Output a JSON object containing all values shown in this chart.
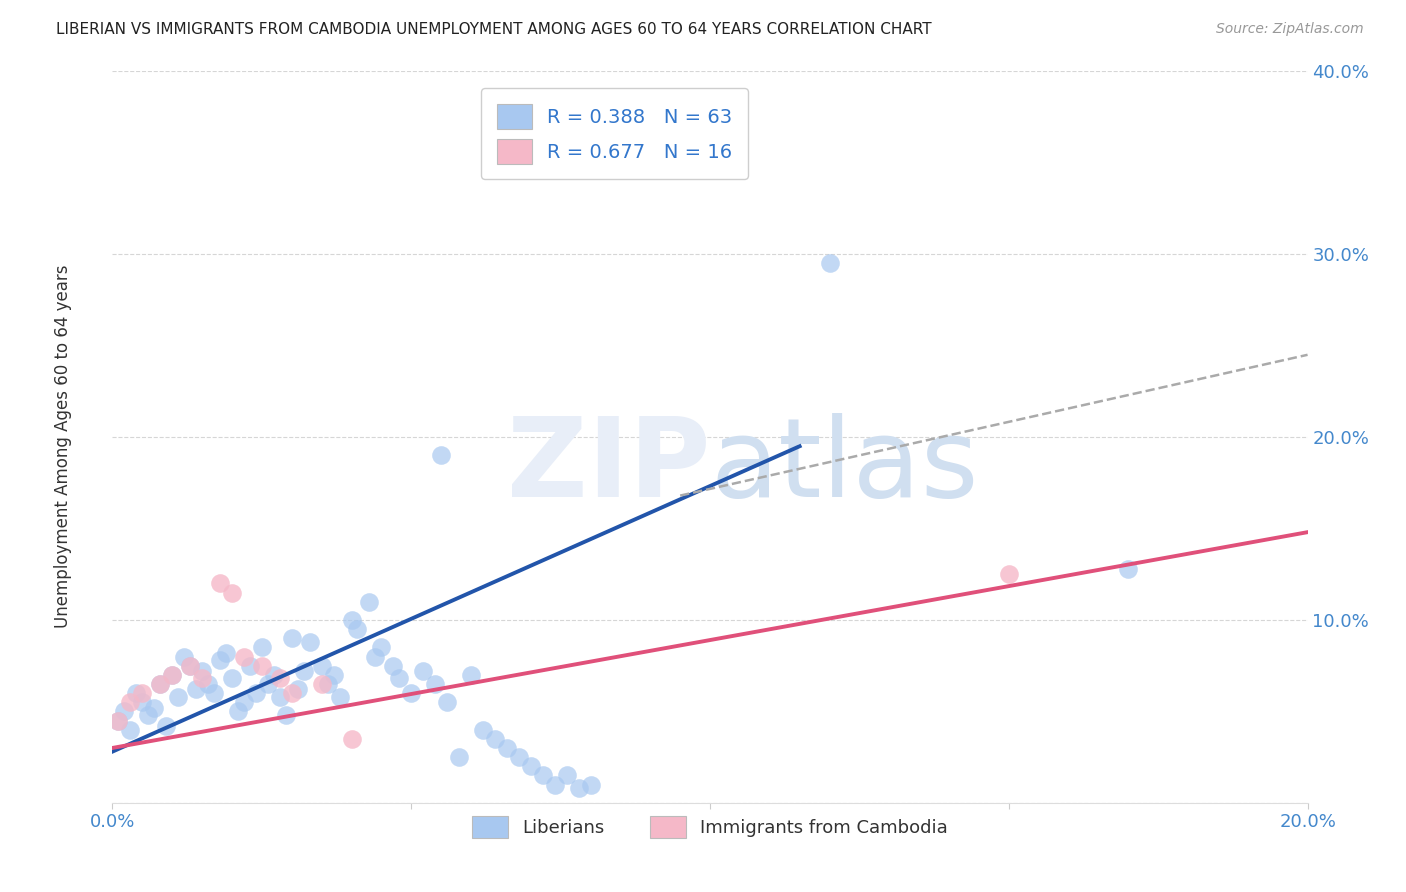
{
  "title": "LIBERIAN VS IMMIGRANTS FROM CAMBODIA UNEMPLOYMENT AMONG AGES 60 TO 64 YEARS CORRELATION CHART",
  "source": "Source: ZipAtlas.com",
  "ylabel": "Unemployment Among Ages 60 to 64 years",
  "xlim": [
    0.0,
    0.2
  ],
  "ylim": [
    0.0,
    0.4
  ],
  "legend_label1": "R = 0.388   N = 63",
  "legend_label2": "R = 0.677   N = 16",
  "legend_bottom_label1": "Liberians",
  "legend_bottom_label2": "Immigrants from Cambodia",
  "blue_color": "#A8C8F0",
  "pink_color": "#F5B8C8",
  "blue_line_color": "#2255AA",
  "pink_line_color": "#E0507A",
  "dashed_line_color": "#AAAAAA",
  "background_color": "#FFFFFF",
  "blue_scatter_x": [
    0.001,
    0.002,
    0.003,
    0.004,
    0.005,
    0.006,
    0.007,
    0.008,
    0.009,
    0.01,
    0.011,
    0.012,
    0.013,
    0.014,
    0.015,
    0.016,
    0.017,
    0.018,
    0.019,
    0.02,
    0.021,
    0.022,
    0.023,
    0.024,
    0.025,
    0.026,
    0.027,
    0.028,
    0.029,
    0.03,
    0.031,
    0.032,
    0.033,
    0.035,
    0.036,
    0.037,
    0.038,
    0.04,
    0.041,
    0.043,
    0.044,
    0.045,
    0.047,
    0.048,
    0.05,
    0.052,
    0.054,
    0.056,
    0.058,
    0.06,
    0.062,
    0.064,
    0.066,
    0.068,
    0.07,
    0.072,
    0.074,
    0.076,
    0.078,
    0.08,
    0.055,
    0.12,
    0.17
  ],
  "blue_scatter_y": [
    0.045,
    0.05,
    0.04,
    0.06,
    0.055,
    0.048,
    0.052,
    0.065,
    0.042,
    0.07,
    0.058,
    0.08,
    0.075,
    0.062,
    0.072,
    0.065,
    0.06,
    0.078,
    0.082,
    0.068,
    0.05,
    0.055,
    0.075,
    0.06,
    0.085,
    0.065,
    0.07,
    0.058,
    0.048,
    0.09,
    0.062,
    0.072,
    0.088,
    0.075,
    0.065,
    0.07,
    0.058,
    0.1,
    0.095,
    0.11,
    0.08,
    0.085,
    0.075,
    0.068,
    0.06,
    0.072,
    0.065,
    0.055,
    0.025,
    0.07,
    0.04,
    0.035,
    0.03,
    0.025,
    0.02,
    0.015,
    0.01,
    0.015,
    0.008,
    0.01,
    0.19,
    0.295,
    0.128
  ],
  "pink_scatter_x": [
    0.001,
    0.003,
    0.005,
    0.008,
    0.01,
    0.013,
    0.015,
    0.018,
    0.02,
    0.022,
    0.025,
    0.028,
    0.03,
    0.035,
    0.04,
    0.15
  ],
  "pink_scatter_y": [
    0.045,
    0.055,
    0.06,
    0.065,
    0.07,
    0.075,
    0.068,
    0.12,
    0.115,
    0.08,
    0.075,
    0.068,
    0.06,
    0.065,
    0.035,
    0.125
  ],
  "blue_line_x": [
    0.0,
    0.115
  ],
  "blue_line_y": [
    0.028,
    0.195
  ],
  "pink_line_x": [
    0.0,
    0.2
  ],
  "pink_line_y": [
    0.03,
    0.148
  ],
  "dashed_line_x": [
    0.095,
    0.2
  ],
  "dashed_line_y": [
    0.168,
    0.245
  ]
}
